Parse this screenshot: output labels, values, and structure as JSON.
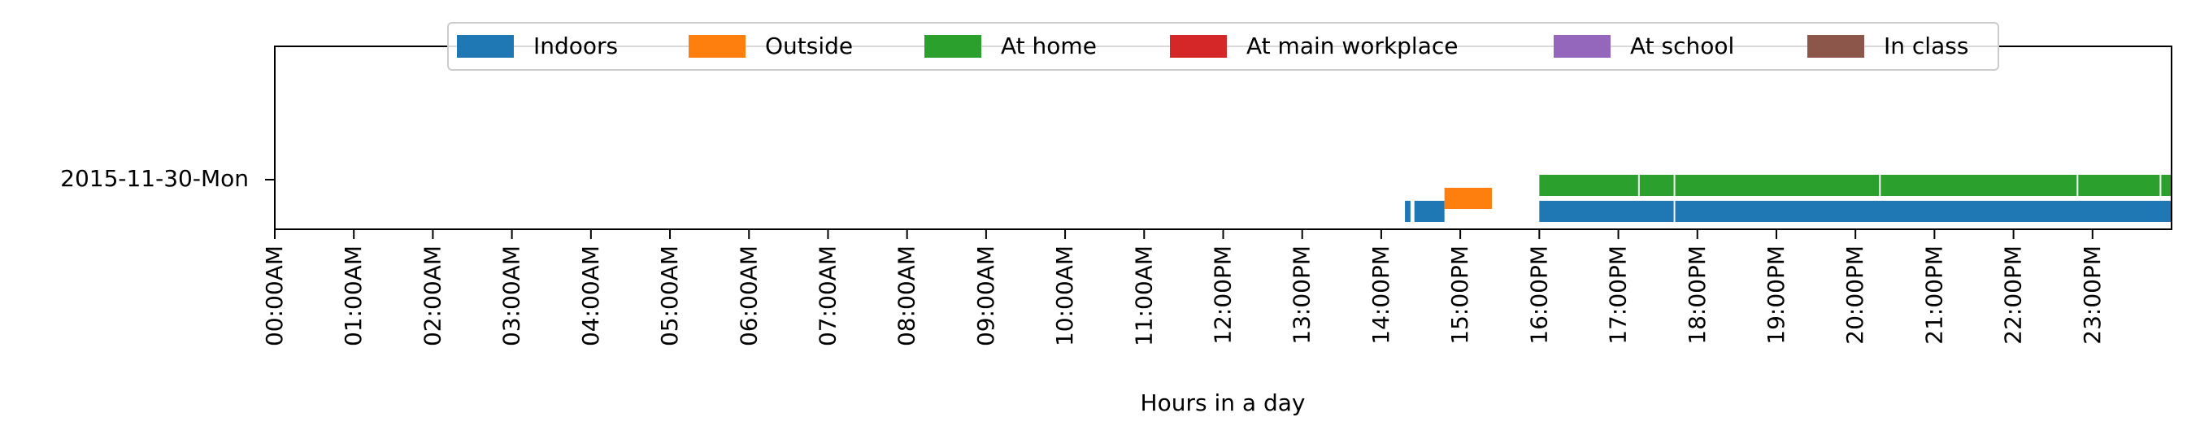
{
  "chart_data": {
    "type": "timeline",
    "xlabel": "Hours in a day",
    "ylabel": "",
    "title": "",
    "xlim": [
      0,
      24
    ],
    "row_label": "2015-11-30-Mon",
    "legend_position": "top",
    "grid": false,
    "x_ticks": [
      "00:00AM",
      "01:00AM",
      "02:00AM",
      "03:00AM",
      "04:00AM",
      "05:00AM",
      "06:00AM",
      "07:00AM",
      "08:00AM",
      "09:00AM",
      "10:00AM",
      "11:00AM",
      "12:00PM",
      "13:00PM",
      "14:00PM",
      "15:00PM",
      "16:00PM",
      "17:00PM",
      "18:00PM",
      "19:00PM",
      "20:00PM",
      "21:00PM",
      "22:00PM",
      "23:00PM"
    ],
    "series": [
      {
        "name": "Indoors",
        "color": "#1f77b4",
        "lane": 0,
        "intervals": [
          [
            14.3,
            14.37
          ],
          [
            14.42,
            14.8
          ],
          [
            16.0,
            17.7
          ],
          [
            17.72,
            24.0
          ]
        ]
      },
      {
        "name": "Outside",
        "color": "#ff7f0e",
        "lane": 1,
        "intervals": [
          [
            14.8,
            15.4
          ]
        ]
      },
      {
        "name": "At home",
        "color": "#2ca02c",
        "lane": 2,
        "intervals": [
          [
            16.0,
            17.25
          ],
          [
            17.27,
            17.7
          ],
          [
            17.72,
            20.3
          ],
          [
            20.32,
            22.8
          ],
          [
            22.82,
            23.85
          ],
          [
            23.87,
            24.0
          ]
        ]
      },
      {
        "name": "At main workplace",
        "color": "#d62728",
        "lane": 3,
        "intervals": []
      },
      {
        "name": "At school",
        "color": "#9467bd",
        "lane": 4,
        "intervals": []
      },
      {
        "name": "In class",
        "color": "#8c564b",
        "lane": 5,
        "intervals": []
      }
    ]
  }
}
